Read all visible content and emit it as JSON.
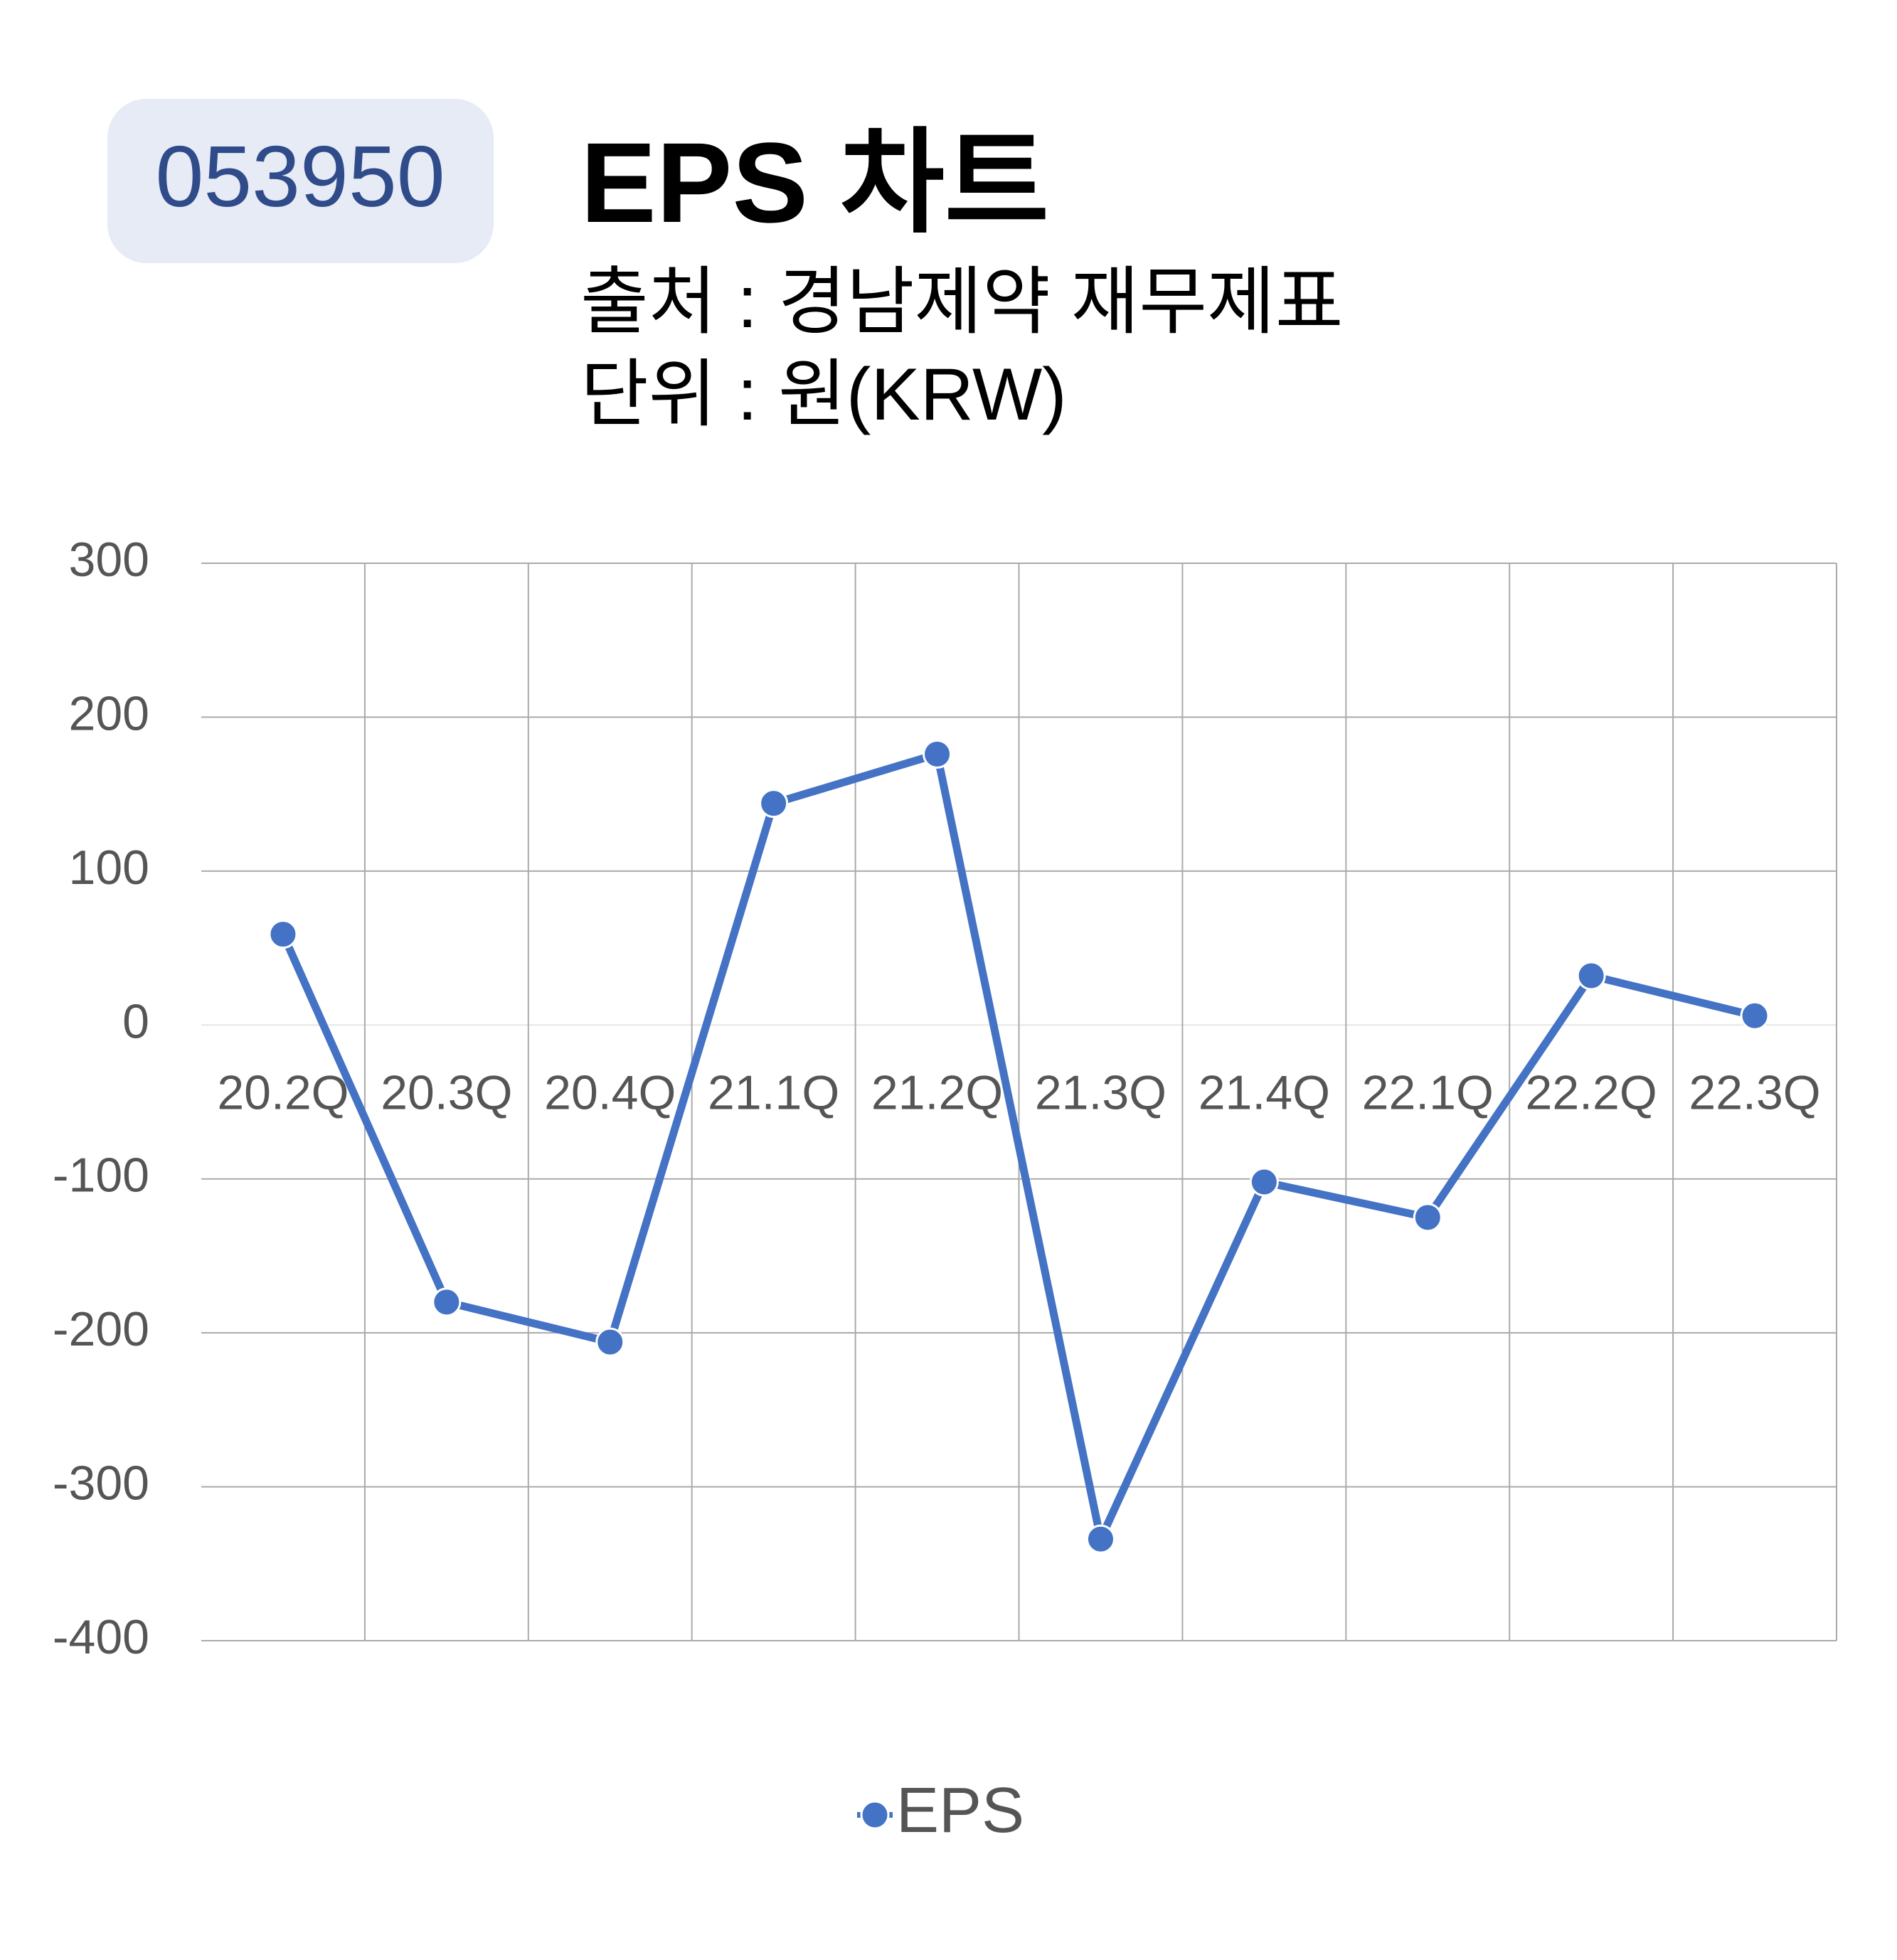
{
  "badge": "053950",
  "chart_data": {
    "type": "line",
    "title": "EPS 차트",
    "subtitles": [
      "출처 : 경남제약 재무제표",
      "단위 : 원(KRW)"
    ],
    "categories": [
      "20.2Q",
      "20.3Q",
      "20.4Q",
      "21.1Q",
      "21.2Q",
      "21.3Q",
      "21.4Q",
      "22.1Q",
      "22.2Q",
      "22.3Q"
    ],
    "series": [
      {
        "name": "EPS",
        "color": "#4472c4",
        "values": [
          59,
          -180,
          -206,
          144,
          176,
          -334,
          -102,
          -125,
          32,
          6
        ]
      }
    ],
    "ylim": [
      -400,
      300
    ],
    "yticks": [
      -400,
      -300,
      -200,
      -100,
      0,
      100,
      200,
      300
    ],
    "grid": true,
    "legend": "bottom"
  }
}
